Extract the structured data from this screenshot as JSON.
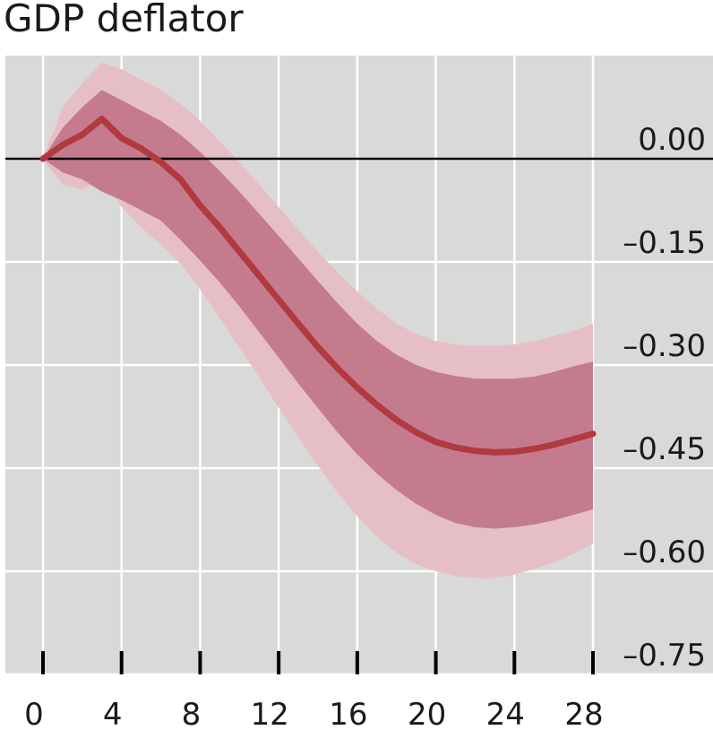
{
  "chart_data": {
    "type": "line",
    "title": "GDP deflator",
    "xlabel": "",
    "ylabel": "",
    "x_ticks": [
      0,
      4,
      8,
      12,
      16,
      20,
      24,
      28
    ],
    "x_tick_labels": [
      "0",
      "4",
      "8",
      "12",
      "16",
      "20",
      "24",
      "28"
    ],
    "y_ticks": [
      0.0,
      -0.15,
      -0.3,
      -0.45,
      -0.6,
      -0.75
    ],
    "y_tick_labels": [
      "0.00",
      "–0.15",
      "–0.30",
      "–0.45",
      "–0.60",
      "–0.75"
    ],
    "xlim": [
      -2,
      33
    ],
    "ylim": [
      -0.75,
      0.15
    ],
    "y_axis_position": "right",
    "grid": true,
    "x": [
      0,
      1,
      2,
      3,
      4,
      5,
      6,
      7,
      8,
      9,
      10,
      11,
      12,
      13,
      14,
      15,
      16,
      17,
      18,
      19,
      20,
      21,
      22,
      23,
      24,
      25,
      26,
      27,
      28
    ],
    "series": [
      {
        "values": [
          0.0,
          0.02,
          0.035,
          0.058,
          0.03,
          0.015,
          -0.005,
          -0.03,
          -0.068,
          -0.1,
          -0.135,
          -0.17,
          -0.205,
          -0.24,
          -0.274,
          -0.305,
          -0.333,
          -0.358,
          -0.38,
          -0.398,
          -0.412,
          -0.42,
          -0.425,
          -0.427,
          -0.426,
          -0.422,
          -0.416,
          -0.408,
          -0.4
        ],
        "color": "#b03a3e"
      }
    ],
    "bands": [
      {
        "lower": [
          0.0,
          -0.02,
          -0.03,
          -0.048,
          -0.06,
          -0.075,
          -0.09,
          -0.118,
          -0.148,
          -0.18,
          -0.215,
          -0.252,
          -0.289,
          -0.327,
          -0.363,
          -0.398,
          -0.43,
          -0.458,
          -0.482,
          -0.502,
          -0.518,
          -0.53,
          -0.536,
          -0.538,
          -0.536,
          -0.532,
          -0.526,
          -0.518,
          -0.51
        ],
        "upper": [
          0.0,
          0.045,
          0.075,
          0.1,
          0.085,
          0.07,
          0.055,
          0.035,
          0.01,
          -0.018,
          -0.048,
          -0.08,
          -0.112,
          -0.145,
          -0.178,
          -0.21,
          -0.24,
          -0.265,
          -0.285,
          -0.3,
          -0.31,
          -0.316,
          -0.32,
          -0.32,
          -0.32,
          -0.317,
          -0.31,
          -0.302,
          -0.295
        ],
        "color": "#c47b8e"
      },
      {
        "lower": [
          0.0,
          -0.038,
          -0.045,
          -0.03,
          -0.07,
          -0.1,
          -0.125,
          -0.153,
          -0.19,
          -0.232,
          -0.275,
          -0.318,
          -0.362,
          -0.405,
          -0.447,
          -0.486,
          -0.52,
          -0.55,
          -0.573,
          -0.59,
          -0.6,
          -0.607,
          -0.61,
          -0.61,
          -0.605,
          -0.597,
          -0.587,
          -0.575,
          -0.56
        ],
        "upper": [
          0.0,
          0.075,
          0.11,
          0.14,
          0.13,
          0.115,
          0.1,
          0.08,
          0.055,
          0.025,
          -0.005,
          -0.037,
          -0.07,
          -0.103,
          -0.135,
          -0.165,
          -0.193,
          -0.218,
          -0.24,
          -0.255,
          -0.265,
          -0.27,
          -0.272,
          -0.272,
          -0.27,
          -0.265,
          -0.258,
          -0.25,
          -0.24
        ],
        "color": "#e6bfc6"
      }
    ],
    "zero_line": 0.0,
    "colors": {
      "background": "#d9d9d9",
      "grid": "#ffffff",
      "line": "#b03a3e",
      "inner_band": "#c47b8e",
      "outer_band": "#e6bfc6",
      "axis": "#000000"
    }
  }
}
